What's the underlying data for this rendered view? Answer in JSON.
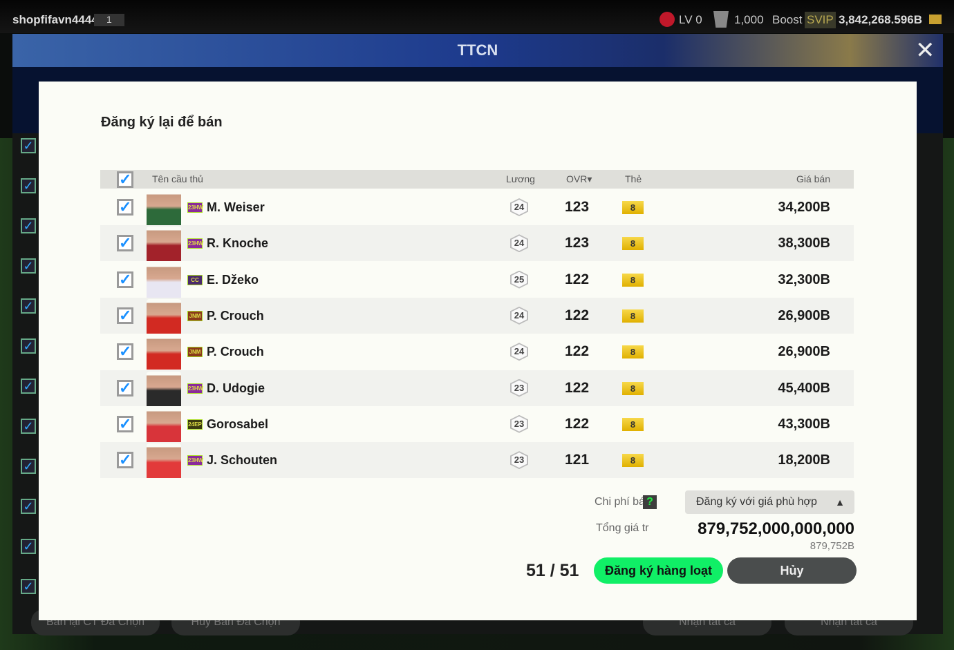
{
  "topbar": {
    "username": "shopfifavn4444",
    "user_badge": "1",
    "level": "LV 0",
    "points": "1,000",
    "boost": "Boost",
    "svip": "SVIP",
    "balance": "3,842,268.596B"
  },
  "window": {
    "title": "TTCN"
  },
  "background": {
    "buttons": [
      "Bán lại CT Đã Chọn",
      "Hủy Bán Đã Chọn",
      "Nhận tất cả",
      "Nhận tất cả"
    ]
  },
  "modal": {
    "title": "Đăng ký lại để bán",
    "columns": {
      "name": "Tên cầu thủ",
      "salary": "Lương",
      "ovr": "OVR▾",
      "grade": "Thẻ",
      "price": "Giá bán"
    },
    "rows": [
      {
        "season": "23HW",
        "season_color": "#8a2a9a",
        "name": "M. Weiser",
        "salary": "24",
        "ovr": "123",
        "grade": "8",
        "price": "34,200B",
        "kit": "#2d6a3a",
        "checked": true
      },
      {
        "season": "23HW",
        "season_color": "#8a2a9a",
        "name": "R. Knoche",
        "salary": "24",
        "ovr": "123",
        "grade": "8",
        "price": "38,300B",
        "kit": "#a2222a",
        "checked": true
      },
      {
        "season": "CC",
        "season_color": "#4a2a6a",
        "name": "E. Džeko",
        "salary": "25",
        "ovr": "122",
        "grade": "8",
        "price": "32,300B",
        "kit": "#e8e6f2",
        "checked": true
      },
      {
        "season": "JNM",
        "season_color": "#8a3a1a",
        "name": "P. Crouch",
        "salary": "24",
        "ovr": "122",
        "grade": "8",
        "price": "26,900B",
        "kit": "#d22a22",
        "checked": true
      },
      {
        "season": "JNM",
        "season_color": "#8a3a1a",
        "name": "P. Crouch",
        "salary": "24",
        "ovr": "122",
        "grade": "8",
        "price": "26,900B",
        "kit": "#d22a22",
        "checked": true
      },
      {
        "season": "23HW",
        "season_color": "#8a2a9a",
        "name": "D. Udogie",
        "salary": "23",
        "ovr": "122",
        "grade": "8",
        "price": "45,400B",
        "kit": "#2a2a2a",
        "checked": true
      },
      {
        "season": "24EP",
        "season_color": "#3a3a10",
        "name": "Gorosabel",
        "salary": "23",
        "ovr": "122",
        "grade": "8",
        "price": "43,300B",
        "kit": "#d8343a",
        "checked": true
      },
      {
        "season": "23HW",
        "season_color": "#8a2a9a",
        "name": "J. Schouten",
        "salary": "23",
        "ovr": "121",
        "grade": "8",
        "price": "18,200B",
        "kit": "#e23a3a",
        "checked": true
      }
    ],
    "fee_label": "Chi phí bá",
    "help": "?",
    "price_mode": "Đăng ký với giá phù hợp",
    "total_label": "Tổng giá tr",
    "total": "879,752,000,000,000",
    "total_short": "879,752B",
    "count": "51 / 51",
    "register_button": "Đăng ký hàng loạt",
    "cancel_button": "Hủy"
  },
  "colors": {
    "accent_green": "#10ef66",
    "check_blue": "#1a90ff",
    "grade_gold": "#f2cc2a"
  }
}
